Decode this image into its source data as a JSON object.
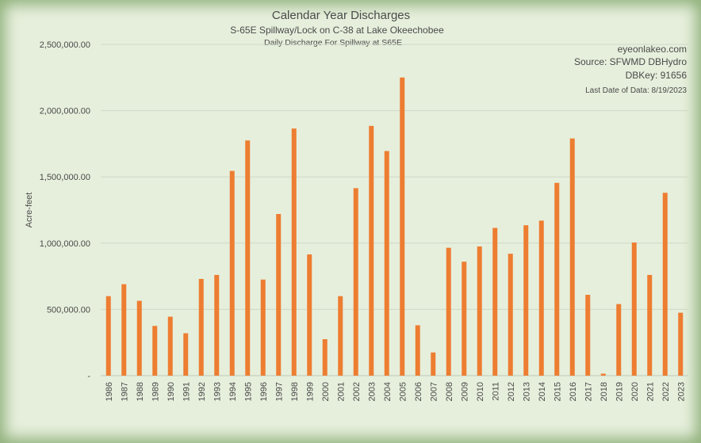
{
  "chart_data": {
    "type": "bar",
    "title": "Calendar Year Discharges",
    "subtitle": "S-65E Spillway/Lock on C-38 at Lake Okeechobee",
    "subsubtitle": "Daily Discharge For Spillway at S65E",
    "ylabel": "Acre-feet",
    "xlabel": "",
    "ylim": [
      0,
      2500000
    ],
    "yticks": [
      0,
      500000,
      1000000,
      1500000,
      2000000,
      2500000
    ],
    "ytick_labels": [
      "-",
      "500,000.00",
      "1,000,000.00",
      "1,500,000.00",
      "2,000,000.00",
      "2,500,000.00"
    ],
    "grid": true,
    "bar_color": "#ed7d31",
    "categories": [
      "1986",
      "1987",
      "1988",
      "1989",
      "1990",
      "1991",
      "1992",
      "1993",
      "1994",
      "1995",
      "1996",
      "1997",
      "1998",
      "1999",
      "2000",
      "2001",
      "2002",
      "2003",
      "2004",
      "2005",
      "2006",
      "2007",
      "2008",
      "2009",
      "2010",
      "2011",
      "2012",
      "2013",
      "2014",
      "2015",
      "2016",
      "2017",
      "2018",
      "2019",
      "2020",
      "2021",
      "2022",
      "2023"
    ],
    "values": [
      600000,
      690000,
      565000,
      375000,
      445000,
      320000,
      730000,
      760000,
      1545000,
      1775000,
      725000,
      1220000,
      1865000,
      915000,
      275000,
      600000,
      1415000,
      1885000,
      1695000,
      2250000,
      380000,
      175000,
      965000,
      860000,
      975000,
      1115000,
      920000,
      1135000,
      1170000,
      1455000,
      1790000,
      610000,
      15000,
      540000,
      1005000,
      760000,
      1380000,
      475000
    ]
  },
  "annotations": {
    "site": "eyeonlakeo.com",
    "source": "Source: SFWMD DBHydro",
    "dbkey": "DBKey: 91656",
    "last_date": "Last Date of Data: 8/19/2023"
  }
}
